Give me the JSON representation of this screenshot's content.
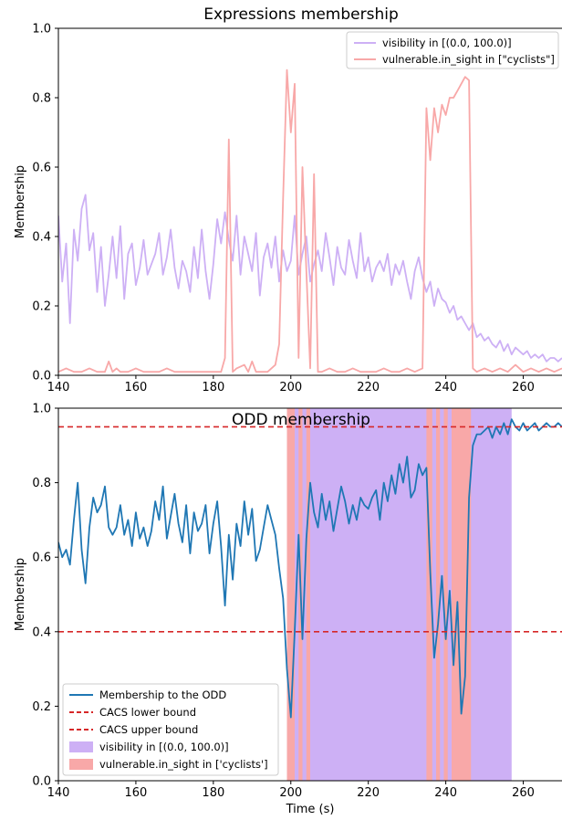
{
  "chart_data": [
    {
      "type": "line",
      "title": "Expressions membership",
      "xlabel": "",
      "ylabel": "Membership",
      "xlim": [
        140,
        270
      ],
      "ylim": [
        0.0,
        1.0
      ],
      "xticks": [
        "140",
        "160",
        "180",
        "200",
        "220",
        "240",
        "260"
      ],
      "yticks": [
        "0.0",
        "0.2",
        "0.4",
        "0.6",
        "0.8",
        "1.0"
      ],
      "grid": false,
      "legend_position": "top-right",
      "series": [
        {
          "name": "visibility in [(0.0, 100.0)]",
          "color": "#cdb0f5",
          "x": [
            140,
            141,
            142,
            143,
            144,
            145,
            146,
            147,
            148,
            149,
            150,
            151,
            152,
            153,
            154,
            155,
            156,
            157,
            158,
            159,
            160,
            161,
            162,
            163,
            164,
            165,
            166,
            167,
            168,
            169,
            170,
            171,
            172,
            173,
            174,
            175,
            176,
            177,
            178,
            179,
            180,
            181,
            182,
            183,
            184,
            185,
            186,
            187,
            188,
            189,
            190,
            191,
            192,
            193,
            194,
            195,
            196,
            197,
            198,
            199,
            200,
            201,
            202,
            203,
            204,
            205,
            206,
            207,
            208,
            209,
            210,
            211,
            212,
            213,
            214,
            215,
            216,
            217,
            218,
            219,
            220,
            221,
            222,
            223,
            224,
            225,
            226,
            227,
            228,
            229,
            230,
            231,
            232,
            233,
            234,
            235,
            236,
            237,
            238,
            239,
            240,
            241,
            242,
            243,
            244,
            245,
            246,
            247,
            248,
            249,
            250,
            251,
            252,
            253,
            254,
            255,
            256,
            257,
            258,
            259,
            260,
            261,
            262,
            263,
            264,
            265,
            266,
            267,
            268,
            269,
            270
          ],
          "y": [
            0.46,
            0.27,
            0.38,
            0.15,
            0.42,
            0.33,
            0.48,
            0.52,
            0.36,
            0.41,
            0.24,
            0.37,
            0.2,
            0.29,
            0.4,
            0.28,
            0.43,
            0.22,
            0.35,
            0.38,
            0.26,
            0.31,
            0.39,
            0.29,
            0.32,
            0.35,
            0.41,
            0.29,
            0.34,
            0.42,
            0.31,
            0.25,
            0.33,
            0.3,
            0.24,
            0.37,
            0.28,
            0.42,
            0.3,
            0.22,
            0.32,
            0.45,
            0.38,
            0.47,
            0.39,
            0.33,
            0.46,
            0.29,
            0.4,
            0.35,
            0.3,
            0.41,
            0.23,
            0.34,
            0.38,
            0.31,
            0.4,
            0.27,
            0.36,
            0.3,
            0.33,
            0.46,
            0.29,
            0.35,
            0.4,
            0.27,
            0.32,
            0.36,
            0.3,
            0.41,
            0.34,
            0.26,
            0.37,
            0.31,
            0.29,
            0.39,
            0.33,
            0.28,
            0.41,
            0.3,
            0.34,
            0.27,
            0.31,
            0.33,
            0.3,
            0.35,
            0.26,
            0.32,
            0.29,
            0.33,
            0.27,
            0.22,
            0.3,
            0.34,
            0.28,
            0.24,
            0.27,
            0.2,
            0.25,
            0.22,
            0.21,
            0.18,
            0.2,
            0.16,
            0.17,
            0.15,
            0.13,
            0.15,
            0.11,
            0.12,
            0.1,
            0.11,
            0.09,
            0.08,
            0.1,
            0.07,
            0.09,
            0.06,
            0.08,
            0.07,
            0.06,
            0.07,
            0.05,
            0.06,
            0.05,
            0.06,
            0.04,
            0.05,
            0.05,
            0.04,
            0.05
          ]
        },
        {
          "name": "vulnerable.in_sight in [\"cyclists\"]",
          "color": "#f8a8a8",
          "x": [
            140,
            142,
            144,
            146,
            148,
            150,
            152,
            153,
            154,
            155,
            156,
            158,
            160,
            162,
            164,
            166,
            168,
            170,
            172,
            174,
            176,
            178,
            180,
            182,
            183,
            184,
            185,
            186,
            188,
            189,
            190,
            191,
            192,
            194,
            196,
            197,
            198,
            199,
            200,
            201,
            202,
            203,
            204,
            205,
            206,
            207,
            208,
            210,
            212,
            214,
            216,
            218,
            220,
            222,
            224,
            226,
            228,
            230,
            232,
            234,
            235,
            236,
            237,
            238,
            239,
            240,
            241,
            242,
            243,
            244,
            245,
            246,
            247,
            248,
            250,
            252,
            254,
            256,
            258,
            260,
            262,
            264,
            266,
            268,
            270
          ],
          "y": [
            0.01,
            0.02,
            0.01,
            0.01,
            0.02,
            0.01,
            0.01,
            0.04,
            0.01,
            0.02,
            0.01,
            0.01,
            0.02,
            0.01,
            0.01,
            0.01,
            0.02,
            0.01,
            0.01,
            0.01,
            0.01,
            0.01,
            0.01,
            0.01,
            0.05,
            0.68,
            0.01,
            0.02,
            0.03,
            0.01,
            0.04,
            0.01,
            0.01,
            0.01,
            0.03,
            0.09,
            0.51,
            0.88,
            0.7,
            0.84,
            0.05,
            0.6,
            0.3,
            0.02,
            0.58,
            0.01,
            0.01,
            0.02,
            0.01,
            0.01,
            0.02,
            0.01,
            0.01,
            0.01,
            0.02,
            0.01,
            0.01,
            0.02,
            0.01,
            0.02,
            0.77,
            0.62,
            0.77,
            0.7,
            0.78,
            0.75,
            0.8,
            0.8,
            0.82,
            0.84,
            0.86,
            0.85,
            0.02,
            0.01,
            0.02,
            0.01,
            0.02,
            0.01,
            0.03,
            0.01,
            0.02,
            0.01,
            0.02,
            0.01,
            0.02
          ]
        }
      ]
    },
    {
      "type": "line",
      "title": "ODD membership",
      "xlabel": "Time (s)",
      "ylabel": "Membership",
      "xlim": [
        140,
        270
      ],
      "ylim": [
        0.0,
        1.0
      ],
      "xticks": [
        "140",
        "160",
        "180",
        "200",
        "220",
        "240",
        "260"
      ],
      "yticks": [
        "0.0",
        "0.2",
        "0.4",
        "0.6",
        "0.8",
        "1.0"
      ],
      "grid": false,
      "legend_position": "lower-left",
      "legend": [
        "Membership to the ODD",
        "CACS lower bound",
        "CACS upper bound",
        "visibility in [(0.0, 100.0)]",
        "vulnerable.in_sight in ['cyclists']"
      ],
      "series": [
        {
          "name": "Membership to the ODD",
          "color": "#1f77b4",
          "x": [
            140,
            141,
            142,
            143,
            144,
            145,
            146,
            147,
            148,
            149,
            150,
            151,
            152,
            153,
            154,
            155,
            156,
            157,
            158,
            159,
            160,
            161,
            162,
            163,
            164,
            165,
            166,
            167,
            168,
            169,
            170,
            171,
            172,
            173,
            174,
            175,
            176,
            177,
            178,
            179,
            180,
            181,
            182,
            183,
            184,
            185,
            186,
            187,
            188,
            189,
            190,
            191,
            192,
            193,
            194,
            195,
            196,
            197,
            198,
            199,
            200,
            201,
            202,
            203,
            204,
            205,
            206,
            207,
            208,
            209,
            210,
            211,
            212,
            213,
            214,
            215,
            216,
            217,
            218,
            219,
            220,
            221,
            222,
            223,
            224,
            225,
            226,
            227,
            228,
            229,
            230,
            231,
            232,
            233,
            234,
            235,
            236,
            237,
            238,
            239,
            240,
            241,
            242,
            243,
            244,
            245,
            246,
            247,
            248,
            249,
            250,
            251,
            252,
            253,
            254,
            255,
            256,
            257,
            258,
            259,
            260,
            261,
            262,
            263,
            264,
            265,
            266,
            267,
            268,
            269,
            270
          ],
          "y": [
            0.64,
            0.6,
            0.62,
            0.58,
            0.7,
            0.8,
            0.62,
            0.53,
            0.68,
            0.76,
            0.72,
            0.74,
            0.79,
            0.68,
            0.66,
            0.68,
            0.74,
            0.66,
            0.7,
            0.63,
            0.72,
            0.65,
            0.68,
            0.63,
            0.67,
            0.75,
            0.7,
            0.79,
            0.65,
            0.71,
            0.77,
            0.69,
            0.64,
            0.74,
            0.61,
            0.72,
            0.67,
            0.69,
            0.74,
            0.61,
            0.69,
            0.75,
            0.63,
            0.47,
            0.66,
            0.54,
            0.69,
            0.63,
            0.75,
            0.66,
            0.73,
            0.59,
            0.62,
            0.68,
            0.74,
            0.7,
            0.66,
            0.57,
            0.49,
            0.3,
            0.17,
            0.4,
            0.66,
            0.38,
            0.65,
            0.8,
            0.72,
            0.68,
            0.77,
            0.7,
            0.75,
            0.67,
            0.73,
            0.79,
            0.75,
            0.69,
            0.74,
            0.7,
            0.76,
            0.74,
            0.73,
            0.76,
            0.78,
            0.7,
            0.8,
            0.75,
            0.82,
            0.77,
            0.85,
            0.8,
            0.87,
            0.76,
            0.78,
            0.85,
            0.82,
            0.84,
            0.56,
            0.33,
            0.42,
            0.55,
            0.38,
            0.51,
            0.31,
            0.48,
            0.18,
            0.28,
            0.76,
            0.9,
            0.93,
            0.93,
            0.94,
            0.95,
            0.92,
            0.95,
            0.93,
            0.96,
            0.93,
            0.97,
            0.95,
            0.94,
            0.96,
            0.94,
            0.95,
            0.96,
            0.94,
            0.95,
            0.96,
            0.95,
            0.95,
            0.96,
            0.95
          ]
        },
        {
          "name": "CACS lower bound",
          "color": "#d62728",
          "y_constant": 0.4
        },
        {
          "name": "CACS upper bound",
          "color": "#d62728",
          "y_constant": 0.95
        }
      ],
      "shaded_regions": [
        {
          "name": "visibility in [(0.0, 100.0)]",
          "color": "#cdb0f5",
          "spans": [
            [
              199,
              257
            ]
          ]
        },
        {
          "name": "vulnerable.in_sight in ['cyclists']",
          "color": "#f8a8a8",
          "spans": [
            [
              199,
              201
            ],
            [
              202,
              203
            ],
            [
              204,
              205
            ],
            [
              235,
              236.5
            ],
            [
              237.5,
              238.5
            ],
            [
              239.5,
              240.5
            ],
            [
              241.5,
              246.5
            ]
          ]
        }
      ]
    }
  ]
}
